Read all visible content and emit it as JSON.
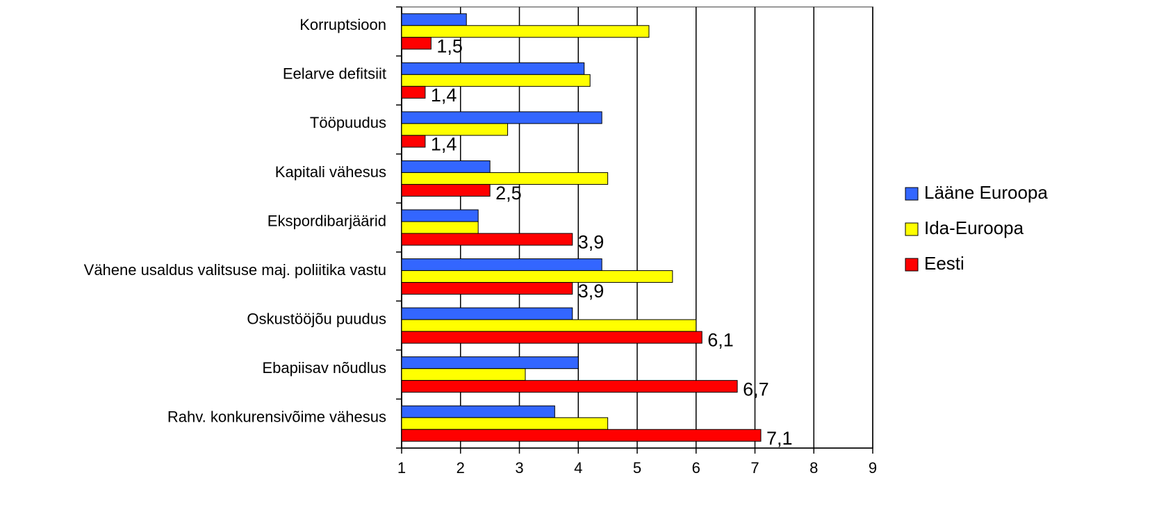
{
  "chart_data": {
    "type": "bar",
    "orientation": "horizontal",
    "categories": [
      "Korruptsioon",
      "Eelarve defitsiit",
      "Tööpuudus",
      "Kapitali vähesus",
      "Ekspordibarjäärid",
      "Vähene usaldus valitsuse maj. poliitika vastu",
      "Oskustööjõu puudus",
      "Ebapiisav nõudlus",
      "Rahv. konkurensivõime vähesus"
    ],
    "series": [
      {
        "name": "Lääne Euroopa",
        "color": "#3366ff",
        "values": [
          2.1,
          4.1,
          4.4,
          2.5,
          2.3,
          4.4,
          3.9,
          4.0,
          3.6
        ]
      },
      {
        "name": "Ida-Euroopa",
        "color": "#ffff00",
        "values": [
          5.2,
          4.2,
          2.8,
          4.5,
          2.3,
          5.6,
          6.0,
          3.1,
          4.5
        ]
      },
      {
        "name": "Eesti",
        "color": "#ff0000",
        "values": [
          1.5,
          1.4,
          1.4,
          2.5,
          3.9,
          3.9,
          6.1,
          6.7,
          7.1
        ],
        "value_labels": [
          "1,5",
          "1,4",
          "1,4",
          "2,5",
          "3,9",
          "3,9",
          "6,1",
          "6,7",
          "7,1"
        ]
      }
    ],
    "xlim": [
      1,
      9
    ],
    "xticks": [
      1,
      2,
      3,
      4,
      5,
      6,
      7,
      8,
      9
    ],
    "grid": true,
    "legend": "right"
  }
}
